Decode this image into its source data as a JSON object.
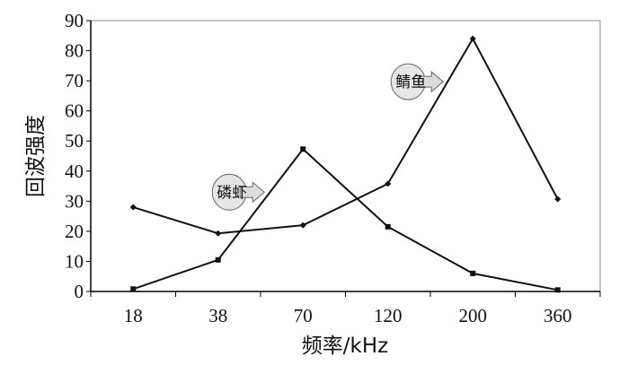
{
  "chart_data": {
    "type": "line",
    "xlabel": "频率/kHz",
    "ylabel": "回波强度",
    "categories": [
      "18",
      "38",
      "70",
      "120",
      "200",
      "360"
    ],
    "ylim": [
      0,
      90
    ],
    "yticks": [
      0,
      10,
      20,
      30,
      40,
      50,
      60,
      70,
      80,
      90
    ],
    "grid": false,
    "series": [
      {
        "name": "鲭鱼",
        "marker": "diamond",
        "values": [
          28,
          19.3,
          22,
          35.8,
          84,
          30.7
        ]
      },
      {
        "name": "磷虾",
        "marker": "square",
        "values": [
          0.8,
          10.5,
          47.3,
          21.5,
          6,
          0.5
        ]
      }
    ],
    "annotations": [
      {
        "text": "鲭鱼",
        "series": 0
      },
      {
        "text": "磷虾",
        "series": 1
      }
    ]
  }
}
